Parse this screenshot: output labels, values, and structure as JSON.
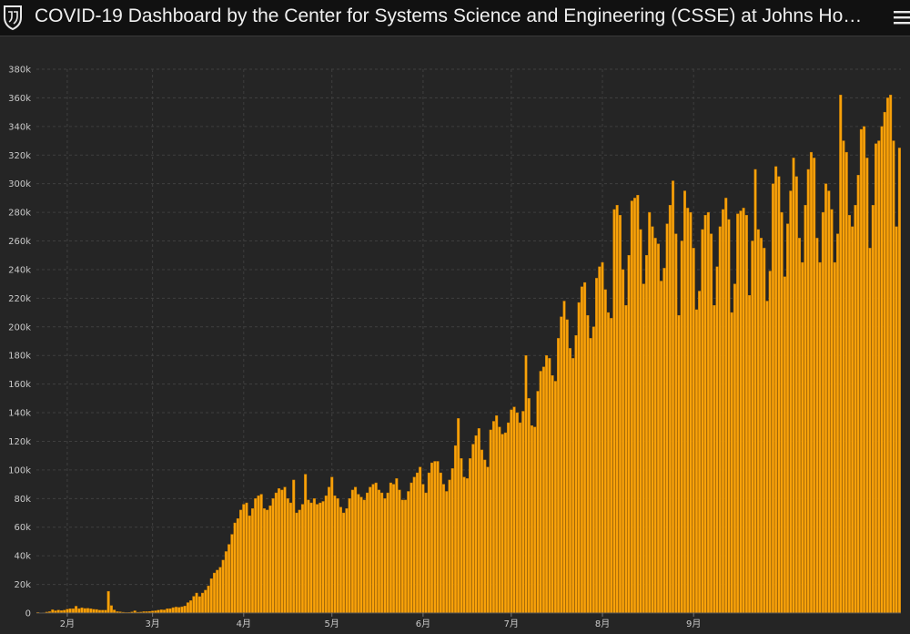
{
  "header": {
    "title": "COVID-19 Dashboard by the Center for Systems Science and Engineering (CSSE) at Johns Ho…",
    "logo_icon": "jhu-shield-icon",
    "menu_icon": "hamburger-menu-icon"
  },
  "colors": {
    "bar": "#f9a20a",
    "bar_edge": "#c77b00",
    "grid": "#3f3f3f",
    "axis_text": "#c9c9c9"
  },
  "chart_data": {
    "type": "bar",
    "title": "",
    "xlabel": "",
    "ylabel": "",
    "ylim": [
      0,
      380000
    ],
    "yticks": [
      0,
      20000,
      40000,
      60000,
      80000,
      100000,
      120000,
      140000,
      160000,
      180000,
      200000,
      220000,
      240000,
      260000,
      280000,
      300000,
      320000,
      340000,
      360000,
      380000
    ],
    "ytick_labels": [
      "0",
      "20k",
      "40k",
      "60k",
      "80k",
      "100k",
      "120k",
      "140k",
      "160k",
      "180k",
      "200k",
      "220k",
      "240k",
      "260k",
      "280k",
      "300k",
      "320k",
      "340k",
      "360k",
      "380k"
    ],
    "grid": true,
    "xtick_labels": [
      "2月",
      "3月",
      "4月",
      "5月",
      "6月",
      "7月",
      "8月",
      "9月"
    ],
    "xtick_dates": [
      "2020-02-01",
      "2020-03-01",
      "2020-04-01",
      "2020-05-01",
      "2020-06-01",
      "2020-07-01",
      "2020-08-01",
      "2020-09-01"
    ],
    "series": [
      {
        "start_date": "2020-01-22",
        "frequency": "daily",
        "values": [
          500,
          150,
          250,
          700,
          1000,
          2300,
          1600,
          2100,
          1700,
          2000,
          2700,
          3000,
          3000,
          4800,
          3100,
          3700,
          3200,
          3300,
          3000,
          2600,
          2500,
          2000,
          2000,
          2000,
          15200,
          5200,
          2200,
          1000,
          900,
          600,
          400,
          500,
          800,
          1600,
          600,
          700,
          1000,
          1000,
          1100,
          1400,
          1600,
          2000,
          2300,
          2200,
          3000,
          3100,
          3800,
          4200,
          4000,
          4400,
          4900,
          7300,
          8700,
          11700,
          14000,
          11500,
          14000,
          16000,
          19000,
          24000,
          28000,
          30000,
          32000,
          37000,
          43000,
          48000,
          55000,
          63000,
          66000,
          72000,
          76000,
          77000,
          68000,
          73000,
          80000,
          82000,
          83000,
          73000,
          72000,
          75000,
          80000,
          84000,
          87000,
          86000,
          88000,
          80000,
          77000,
          93000,
          70000,
          72000,
          76000,
          97000,
          79000,
          77000,
          80000,
          76000,
          77000,
          78000,
          82000,
          88000,
          95000,
          82000,
          80000,
          74000,
          70000,
          73000,
          80000,
          86000,
          88000,
          83000,
          81000,
          79000,
          84000,
          88000,
          90000,
          91000,
          86000,
          84000,
          80000,
          84000,
          91000,
          90000,
          94000,
          86000,
          79000,
          79000,
          85000,
          91000,
          95000,
          98000,
          102000,
          90000,
          84000,
          98000,
          105000,
          106000,
          106000,
          98000,
          90000,
          85000,
          93000,
          101000,
          117000,
          136000,
          108000,
          95000,
          94000,
          108000,
          118000,
          124000,
          129000,
          114000,
          107000,
          102000,
          128000,
          134000,
          138000,
          130000,
          125000,
          126000,
          133000,
          142000,
          144000,
          140000,
          133000,
          141000,
          180000,
          150000,
          131000,
          130000,
          155000,
          169000,
          172000,
          180000,
          178000,
          166000,
          162000,
          192000,
          207000,
          218000,
          205000,
          185000,
          178000,
          194000,
          217000,
          228000,
          231000,
          208000,
          192000,
          200000,
          234000,
          242000,
          245000,
          226000,
          210000,
          206000,
          282000,
          285000,
          278000,
          240000,
          215000,
          250000,
          288000,
          290000,
          292000,
          268000,
          230000,
          250000,
          280000,
          270000,
          262000,
          258000,
          232000,
          241000,
          272000,
          285000,
          302000,
          265000,
          208000,
          260000,
          295000,
          283000,
          280000,
          255000,
          212000,
          225000,
          268000,
          278000,
          280000,
          265000,
          215000,
          242000,
          270000,
          282000,
          290000,
          275000,
          210000,
          230000,
          279000,
          281000,
          283000,
          278000,
          222000,
          260000,
          310000,
          268000,
          262000,
          255000,
          218000,
          239000,
          300000,
          312000,
          305000,
          280000,
          235000,
          272000,
          295000,
          318000,
          305000,
          262000,
          245000,
          285000,
          310000,
          322000,
          318000,
          262000,
          245000,
          280000,
          300000,
          295000,
          282000,
          245000,
          265000,
          362000,
          330000,
          322000,
          278000,
          270000,
          285000,
          306000,
          338000,
          340000,
          318000,
          255000,
          285000,
          328000,
          330000,
          340000,
          350000,
          360000,
          362000,
          330000,
          270000,
          325000
        ]
      }
    ]
  }
}
